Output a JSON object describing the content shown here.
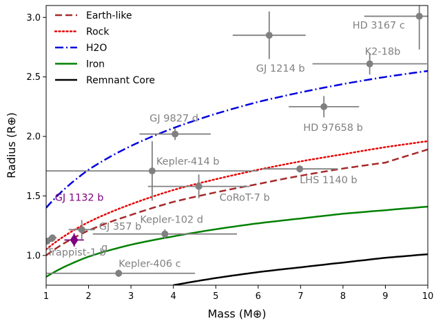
{
  "chart_data": {
    "type": "scatter",
    "xlabel": "Mass (M⊕)",
    "ylabel": "Radius (R⊕)",
    "xlim": [
      1,
      10
    ],
    "ylim": [
      0.75,
      3.1
    ],
    "x_ticks": [
      1,
      2,
      3,
      4,
      5,
      6,
      7,
      8,
      9,
      10
    ],
    "y_ticks": [
      1.0,
      1.5,
      2.0,
      2.5,
      3.0
    ],
    "grid": false,
    "legend_position": "top-left",
    "curves": [
      {
        "name": "Earth-like",
        "color": "#a52a2a",
        "style": "dashed",
        "x": [
          1,
          2,
          3,
          4,
          5,
          6,
          7,
          8,
          9,
          10
        ],
        "y": [
          1.0,
          1.21,
          1.34,
          1.45,
          1.53,
          1.6,
          1.67,
          1.73,
          1.78,
          1.89
        ]
      },
      {
        "name": "Rock",
        "color": "#e60000",
        "style": "dotted",
        "x": [
          1,
          2,
          3,
          4,
          5,
          6,
          7,
          8,
          9,
          10
        ],
        "y": [
          1.05,
          1.28,
          1.43,
          1.55,
          1.64,
          1.72,
          1.79,
          1.85,
          1.91,
          1.96
        ]
      },
      {
        "name": "H2O",
        "color": "#0000dd",
        "style": "dashdot",
        "x": [
          1,
          2,
          3,
          4,
          5,
          6,
          7,
          8,
          9,
          10
        ],
        "y": [
          1.4,
          1.72,
          1.92,
          2.07,
          2.19,
          2.29,
          2.37,
          2.44,
          2.5,
          2.55
        ]
      },
      {
        "name": "Iron",
        "color": "#008000",
        "style": "solid",
        "x": [
          1,
          2,
          3,
          4,
          5,
          6,
          7,
          8,
          9,
          10
        ],
        "y": [
          0.82,
          0.99,
          1.09,
          1.16,
          1.22,
          1.27,
          1.31,
          1.35,
          1.38,
          1.41
        ]
      },
      {
        "name": "Remnant Core",
        "color": "#000000",
        "style": "solid",
        "x": [
          4.0,
          5,
          6,
          7,
          8,
          9,
          10
        ],
        "y": [
          0.75,
          0.81,
          0.86,
          0.9,
          0.94,
          0.98,
          1.01
        ]
      }
    ],
    "planets": [
      {
        "name": "HD 3167 c",
        "x": 9.8,
        "y": 3.01,
        "xerr": 1.3,
        "yerr": 0.28,
        "color": "#808080",
        "marker": "circle",
        "label_dx": -97,
        "label_dy": 18
      },
      {
        "name": "K2-18b",
        "x": 8.63,
        "y": 2.61,
        "xerr": 1.35,
        "yerr": 0.09,
        "color": "#808080",
        "marker": "circle",
        "label_dx": -7,
        "label_dy": -13
      },
      {
        "name": "GJ 1214 b",
        "x": 6.26,
        "y": 2.85,
        "xerr": 0.86,
        "yerr": 0.2,
        "color": "#808080",
        "marker": "circle",
        "label_dx": -19,
        "label_dy": 53
      },
      {
        "name": "HD 97658 b",
        "x": 7.55,
        "y": 2.25,
        "xerr": 0.83,
        "yerr": 0.09,
        "color": "#808080",
        "marker": "circle",
        "label_dx": -30,
        "label_dy": 35
      },
      {
        "name": "GJ 9827 d",
        "x": 4.04,
        "y": 2.02,
        "xerr": 0.84,
        "yerr": 0.05,
        "color": "#808080",
        "marker": "circle",
        "label_dx": -37,
        "label_dy": -18
      },
      {
        "name": "Kepler-414 b",
        "x": 3.5,
        "y": 1.71,
        "xerr": 2.5,
        "yerr": 0.25,
        "color": "#808080",
        "marker": "circle",
        "label_dx": 6,
        "label_dy": -9
      },
      {
        "name": "LHS 1140 b",
        "x": 6.98,
        "y": 1.727,
        "xerr": 0.89,
        "yerr": 0.03,
        "color": "#808080",
        "marker": "circle",
        "label_dx": 0,
        "label_dy": 21
      },
      {
        "name": "CoRoT-7 b",
        "x": 4.6,
        "y": 1.58,
        "xerr": 1.2,
        "yerr": 0.1,
        "color": "#808080",
        "marker": "circle",
        "label_dx": 30,
        "label_dy": 21
      },
      {
        "name": "Kepler-102 d",
        "x": 3.8,
        "y": 1.18,
        "xerr": 1.7,
        "yerr": 0.04,
        "color": "#808080",
        "marker": "circle",
        "label_dx": -36,
        "label_dy": -16
      },
      {
        "name": "GJ 357 b",
        "x": 1.84,
        "y": 1.217,
        "xerr": 0.31,
        "yerr": 0.08,
        "color": "#808080",
        "marker": "circle",
        "label_dx": 25,
        "label_dy": 0
      },
      {
        "name": "GJ 1132 b",
        "x": 1.66,
        "y": 1.13,
        "xerr": 0.23,
        "yerr": 0.056,
        "color": "#800080",
        "marker": "diamond",
        "label_dx": -28,
        "label_dy": -57
      },
      {
        "name": "Trappist-1 b",
        "x": 1.02,
        "y": 1.12,
        "xerr": 0.15,
        "yerr": 0.014,
        "color": "#808080",
        "marker": "circle",
        "label_dx": 0,
        "label_dy": 21
      },
      {
        "name": "g",
        "x": 1.148,
        "y": 1.148,
        "xerr": 0.1,
        "yerr": 0.014,
        "color": "#808080",
        "marker": "circle",
        "label_dx": 71,
        "label_dy": 19
      },
      {
        "name": "Kepler-406 c",
        "x": 2.71,
        "y": 0.85,
        "xerr": 1.8,
        "yerr": 0.03,
        "color": "#808080",
        "marker": "circle",
        "label_dx": 0,
        "label_dy": -9
      }
    ]
  }
}
